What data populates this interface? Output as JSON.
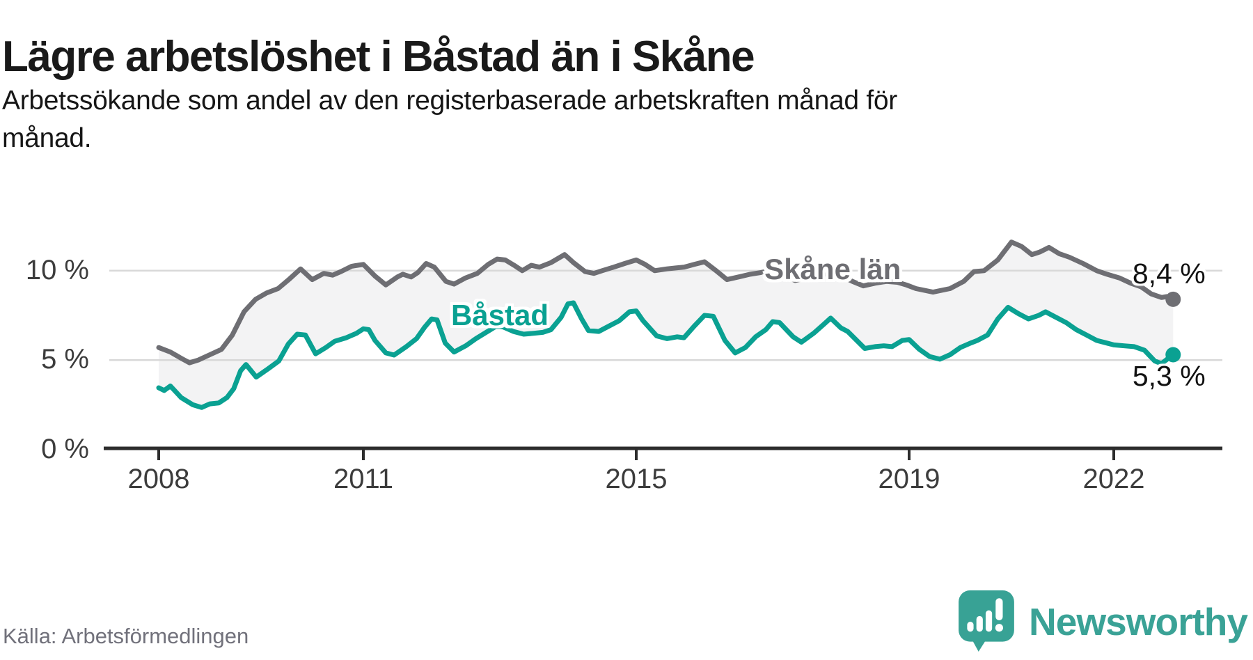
{
  "header": {
    "title": "Lägre arbetslöshet i Båstad än i Skåne",
    "subtitle": "Arbetssökande som andel av den registerbaserade arbetskraften månad för\nmånad."
  },
  "source": {
    "label": "Källa: Arbetsförmedlingen"
  },
  "branding": {
    "wordmark": "Newsworthy",
    "teal": "#3aa296"
  },
  "chart_data": {
    "type": "line",
    "title": "Lägre arbetslöshet i Båstad än i Skåne",
    "subtitle": "Arbetssökande som andel av den registerbaserade arbetskraften månad för månad.",
    "unit": "%",
    "grid": true,
    "legend_position": "inline-labels",
    "band_fill": "#f3f3f4",
    "axis_color": "#2d2d2d",
    "grid_color": "#d8d8d8",
    "x_axis": {
      "ticks": [
        2008,
        2011,
        2015,
        2019,
        2022
      ],
      "range": [
        2007.27,
        2023.64
      ]
    },
    "y_axis": {
      "ticks": [
        {
          "value": 0,
          "label": "0 %"
        },
        {
          "value": 5,
          "label": "5 %"
        },
        {
          "value": 10,
          "label": "10 %"
        }
      ],
      "range": [
        0,
        13.8
      ]
    },
    "series_labels": [
      {
        "text": "Skåne län",
        "x": 2017.88,
        "y": 10.07,
        "color": "#6e6e73",
        "name": "skane-lan"
      },
      {
        "text": "Båstad",
        "x": 2013.0,
        "y": 7.5,
        "color": "#0aa192",
        "name": "bastad"
      }
    ],
    "series": [
      {
        "name": "Skåne län",
        "key": "skane-lan",
        "color": "#6e6e73",
        "end_label": "8,4 %",
        "end_value": 8.4,
        "end_label_side": "above",
        "points": [
          [
            2008.0,
            5.7
          ],
          [
            2008.17,
            5.45
          ],
          [
            2008.33,
            5.1
          ],
          [
            2008.45,
            4.85
          ],
          [
            2008.58,
            5.0
          ],
          [
            2008.75,
            5.3
          ],
          [
            2008.92,
            5.6
          ],
          [
            2009.08,
            6.4
          ],
          [
            2009.25,
            7.7
          ],
          [
            2009.42,
            8.4
          ],
          [
            2009.58,
            8.75
          ],
          [
            2009.75,
            9.0
          ],
          [
            2009.92,
            9.55
          ],
          [
            2010.08,
            10.1
          ],
          [
            2010.25,
            9.5
          ],
          [
            2010.42,
            9.85
          ],
          [
            2010.55,
            9.75
          ],
          [
            2010.67,
            9.95
          ],
          [
            2010.83,
            10.25
          ],
          [
            2011.0,
            10.35
          ],
          [
            2011.17,
            9.7
          ],
          [
            2011.33,
            9.2
          ],
          [
            2011.5,
            9.65
          ],
          [
            2011.58,
            9.8
          ],
          [
            2011.7,
            9.65
          ],
          [
            2011.8,
            9.9
          ],
          [
            2011.92,
            10.4
          ],
          [
            2012.04,
            10.2
          ],
          [
            2012.21,
            9.4
          ],
          [
            2012.33,
            9.25
          ],
          [
            2012.5,
            9.6
          ],
          [
            2012.67,
            9.85
          ],
          [
            2012.83,
            10.35
          ],
          [
            2012.96,
            10.65
          ],
          [
            2013.08,
            10.6
          ],
          [
            2013.21,
            10.3
          ],
          [
            2013.33,
            10.0
          ],
          [
            2013.46,
            10.3
          ],
          [
            2013.58,
            10.2
          ],
          [
            2013.75,
            10.45
          ],
          [
            2013.95,
            10.9
          ],
          [
            2014.08,
            10.45
          ],
          [
            2014.25,
            9.95
          ],
          [
            2014.38,
            9.85
          ],
          [
            2014.5,
            10.0
          ],
          [
            2014.67,
            10.2
          ],
          [
            2014.83,
            10.4
          ],
          [
            2015.0,
            10.6
          ],
          [
            2015.13,
            10.35
          ],
          [
            2015.27,
            10.0
          ],
          [
            2015.45,
            10.1
          ],
          [
            2015.58,
            10.15
          ],
          [
            2015.7,
            10.2
          ],
          [
            2015.85,
            10.35
          ],
          [
            2016.0,
            10.5
          ],
          [
            2016.17,
            10.0
          ],
          [
            2016.33,
            9.5
          ],
          [
            2016.5,
            9.65
          ],
          [
            2016.67,
            9.8
          ],
          [
            2016.83,
            9.9
          ],
          [
            2017.0,
            10.05
          ],
          [
            2017.17,
            9.7
          ],
          [
            2017.33,
            9.45
          ],
          [
            2017.5,
            9.6
          ],
          [
            2017.67,
            9.75
          ],
          [
            2017.83,
            9.85
          ],
          [
            2018.0,
            9.7
          ],
          [
            2018.17,
            9.4
          ],
          [
            2018.33,
            9.15
          ],
          [
            2018.5,
            9.3
          ],
          [
            2018.67,
            9.4
          ],
          [
            2018.83,
            9.35
          ],
          [
            2018.96,
            9.2
          ],
          [
            2019.1,
            9.0
          ],
          [
            2019.35,
            8.8
          ],
          [
            2019.6,
            9.0
          ],
          [
            2019.8,
            9.4
          ],
          [
            2019.95,
            9.95
          ],
          [
            2020.1,
            10.0
          ],
          [
            2020.3,
            10.6
          ],
          [
            2020.5,
            11.6
          ],
          [
            2020.65,
            11.35
          ],
          [
            2020.8,
            10.9
          ],
          [
            2020.92,
            11.05
          ],
          [
            2021.05,
            11.3
          ],
          [
            2021.2,
            10.95
          ],
          [
            2021.35,
            10.75
          ],
          [
            2021.55,
            10.4
          ],
          [
            2021.75,
            10.0
          ],
          [
            2021.9,
            9.8
          ],
          [
            2022.08,
            9.6
          ],
          [
            2022.25,
            9.3
          ],
          [
            2022.4,
            9.1
          ],
          [
            2022.55,
            8.7
          ],
          [
            2022.7,
            8.5
          ],
          [
            2022.78,
            8.55
          ],
          [
            2022.87,
            8.4
          ]
        ]
      },
      {
        "name": "Båstad",
        "key": "bastad",
        "color": "#0aa192",
        "end_label": "5,3 %",
        "end_value": 5.3,
        "end_label_side": "below",
        "points": [
          [
            2008.0,
            3.45
          ],
          [
            2008.08,
            3.3
          ],
          [
            2008.17,
            3.55
          ],
          [
            2008.33,
            2.9
          ],
          [
            2008.5,
            2.5
          ],
          [
            2008.63,
            2.35
          ],
          [
            2008.75,
            2.55
          ],
          [
            2008.88,
            2.6
          ],
          [
            2009.0,
            2.9
          ],
          [
            2009.1,
            3.4
          ],
          [
            2009.2,
            4.4
          ],
          [
            2009.28,
            4.75
          ],
          [
            2009.43,
            4.05
          ],
          [
            2009.6,
            4.5
          ],
          [
            2009.76,
            4.95
          ],
          [
            2009.9,
            5.9
          ],
          [
            2010.03,
            6.45
          ],
          [
            2010.15,
            6.4
          ],
          [
            2010.3,
            5.35
          ],
          [
            2010.45,
            5.7
          ],
          [
            2010.58,
            6.05
          ],
          [
            2010.75,
            6.25
          ],
          [
            2010.9,
            6.5
          ],
          [
            2011.0,
            6.75
          ],
          [
            2011.08,
            6.7
          ],
          [
            2011.17,
            6.1
          ],
          [
            2011.33,
            5.4
          ],
          [
            2011.45,
            5.28
          ],
          [
            2011.63,
            5.75
          ],
          [
            2011.78,
            6.2
          ],
          [
            2011.9,
            6.85
          ],
          [
            2012.0,
            7.3
          ],
          [
            2012.08,
            7.25
          ],
          [
            2012.2,
            5.95
          ],
          [
            2012.33,
            5.45
          ],
          [
            2012.5,
            5.8
          ],
          [
            2012.65,
            6.2
          ],
          [
            2012.82,
            6.6
          ],
          [
            2012.95,
            6.9
          ],
          [
            2013.05,
            6.85
          ],
          [
            2013.2,
            6.6
          ],
          [
            2013.35,
            6.45
          ],
          [
            2013.5,
            6.5
          ],
          [
            2013.63,
            6.55
          ],
          [
            2013.75,
            6.7
          ],
          [
            2013.9,
            7.4
          ],
          [
            2014.0,
            8.15
          ],
          [
            2014.08,
            8.2
          ],
          [
            2014.2,
            7.3
          ],
          [
            2014.3,
            6.65
          ],
          [
            2014.45,
            6.6
          ],
          [
            2014.6,
            6.9
          ],
          [
            2014.75,
            7.2
          ],
          [
            2014.9,
            7.7
          ],
          [
            2015.0,
            7.75
          ],
          [
            2015.1,
            7.2
          ],
          [
            2015.3,
            6.35
          ],
          [
            2015.45,
            6.2
          ],
          [
            2015.6,
            6.3
          ],
          [
            2015.7,
            6.25
          ],
          [
            2015.85,
            6.9
          ],
          [
            2016.0,
            7.5
          ],
          [
            2016.13,
            7.45
          ],
          [
            2016.3,
            6.1
          ],
          [
            2016.45,
            5.4
          ],
          [
            2016.6,
            5.7
          ],
          [
            2016.75,
            6.3
          ],
          [
            2016.9,
            6.7
          ],
          [
            2017.0,
            7.15
          ],
          [
            2017.1,
            7.1
          ],
          [
            2017.3,
            6.3
          ],
          [
            2017.42,
            6.0
          ],
          [
            2017.6,
            6.5
          ],
          [
            2017.75,
            7.0
          ],
          [
            2017.85,
            7.35
          ],
          [
            2018.0,
            6.8
          ],
          [
            2018.1,
            6.6
          ],
          [
            2018.35,
            5.65
          ],
          [
            2018.5,
            5.75
          ],
          [
            2018.63,
            5.8
          ],
          [
            2018.75,
            5.75
          ],
          [
            2018.9,
            6.1
          ],
          [
            2019.0,
            6.15
          ],
          [
            2019.15,
            5.6
          ],
          [
            2019.3,
            5.2
          ],
          [
            2019.45,
            5.05
          ],
          [
            2019.6,
            5.3
          ],
          [
            2019.75,
            5.7
          ],
          [
            2019.9,
            5.95
          ],
          [
            2020.0,
            6.1
          ],
          [
            2020.15,
            6.4
          ],
          [
            2020.3,
            7.3
          ],
          [
            2020.45,
            7.95
          ],
          [
            2020.6,
            7.6
          ],
          [
            2020.75,
            7.3
          ],
          [
            2020.9,
            7.5
          ],
          [
            2021.0,
            7.7
          ],
          [
            2021.15,
            7.4
          ],
          [
            2021.3,
            7.1
          ],
          [
            2021.45,
            6.7
          ],
          [
            2021.6,
            6.4
          ],
          [
            2021.75,
            6.1
          ],
          [
            2021.9,
            5.95
          ],
          [
            2022.0,
            5.85
          ],
          [
            2022.15,
            5.8
          ],
          [
            2022.3,
            5.75
          ],
          [
            2022.45,
            5.55
          ],
          [
            2022.6,
            4.95
          ],
          [
            2022.7,
            4.8
          ],
          [
            2022.8,
            5.1
          ],
          [
            2022.87,
            5.3
          ]
        ]
      }
    ]
  }
}
